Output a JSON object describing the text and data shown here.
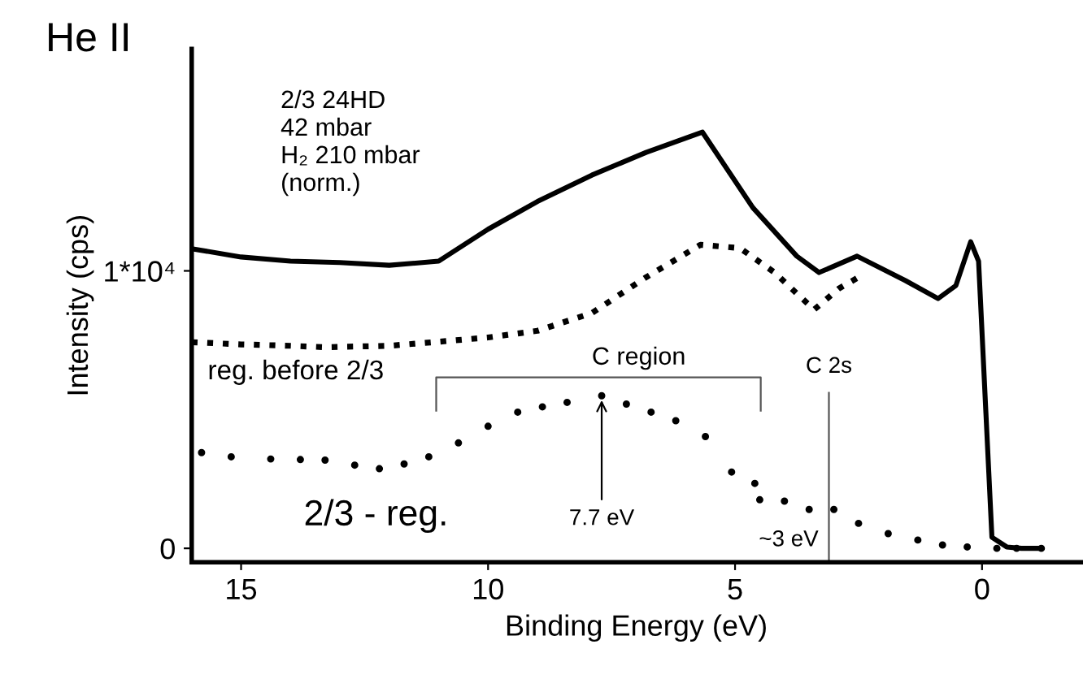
{
  "chart_data": {
    "type": "line",
    "title": "He II",
    "xlabel": "Binding Energy (eV)",
    "ylabel": "Intensity (cps)",
    "xlim": [
      16,
      -2
    ],
    "ylim": [
      -500,
      18000
    ],
    "xticks": [
      15,
      10,
      5,
      0
    ],
    "yticks": [
      0,
      {
        "value": 10000,
        "label": "1*10⁴"
      }
    ],
    "grid": false,
    "series": [
      {
        "color": "#000000",
        "line_style": "solid",
        "x": [
          16,
          15,
          14,
          13,
          12,
          11,
          10,
          9,
          7.9,
          6.8,
          5.66,
          4.64,
          3.75,
          3.3,
          2.53,
          1.55,
          0.89,
          0.53,
          0.23,
          0.07,
          -0.2,
          -0.5,
          -0.8,
          -1.18
        ],
        "values": [
          10800,
          10500,
          10350,
          10300,
          10200,
          10350,
          11500,
          12500,
          13450,
          14270,
          15000,
          12280,
          10530,
          9940,
          10530,
          9650,
          9000,
          9470,
          11050,
          10350,
          400,
          50,
          0,
          0
        ]
      },
      {
        "color": "#000000",
        "line_style": "dotted",
        "x": [
          16,
          15,
          14,
          13.3,
          12,
          11.1,
          10,
          9,
          7.9,
          6.8,
          5.7,
          4.9,
          4.2,
          3.4,
          2.9,
          2.5
        ],
        "values": [
          7430,
          7350,
          7300,
          7250,
          7300,
          7430,
          7600,
          7840,
          8480,
          9770,
          10940,
          10820,
          9940,
          8600,
          9360,
          9770
        ]
      },
      {
        "type": "scatter",
        "color": "#000000",
        "marker": "circle",
        "x": [
          15.8,
          15.2,
          14.4,
          13.8,
          13.3,
          12.7,
          12.2,
          11.7,
          11.2,
          10.6,
          10.0,
          9.4,
          8.9,
          8.4,
          7.7,
          7.2,
          6.7,
          6.2,
          5.6,
          5.07,
          4.6,
          4.5,
          4.0,
          3.5,
          3.0,
          2.5,
          1.9,
          1.3,
          0.8,
          0.3,
          -0.3,
          -0.7,
          -1.2
        ],
        "values": [
          3450,
          3300,
          3220,
          3200,
          3180,
          3000,
          2870,
          3040,
          3300,
          3800,
          4400,
          4910,
          5100,
          5260,
          5500,
          5200,
          4910,
          4600,
          4030,
          2750,
          2340,
          1750,
          1700,
          1400,
          1400,
          900,
          530,
          300,
          120,
          50,
          0,
          0,
          0
        ]
      }
    ],
    "ref_lines": [
      {
        "axis": "x",
        "value": 3.1,
        "label": "C 2s",
        "color": "#555555",
        "line_style": "solid"
      }
    ],
    "annotations": [
      "2/3 24HD\n42 mbar\nH₂ 210 mbar\n(norm.)",
      "reg. before 2/3",
      "2/3 - reg.",
      "C region",
      {
        "text": "7.7 eV",
        "x": 7.7,
        "y": 5500
      },
      {
        "text": "~3 eV",
        "x": 3,
        "y": 1400
      }
    ]
  }
}
